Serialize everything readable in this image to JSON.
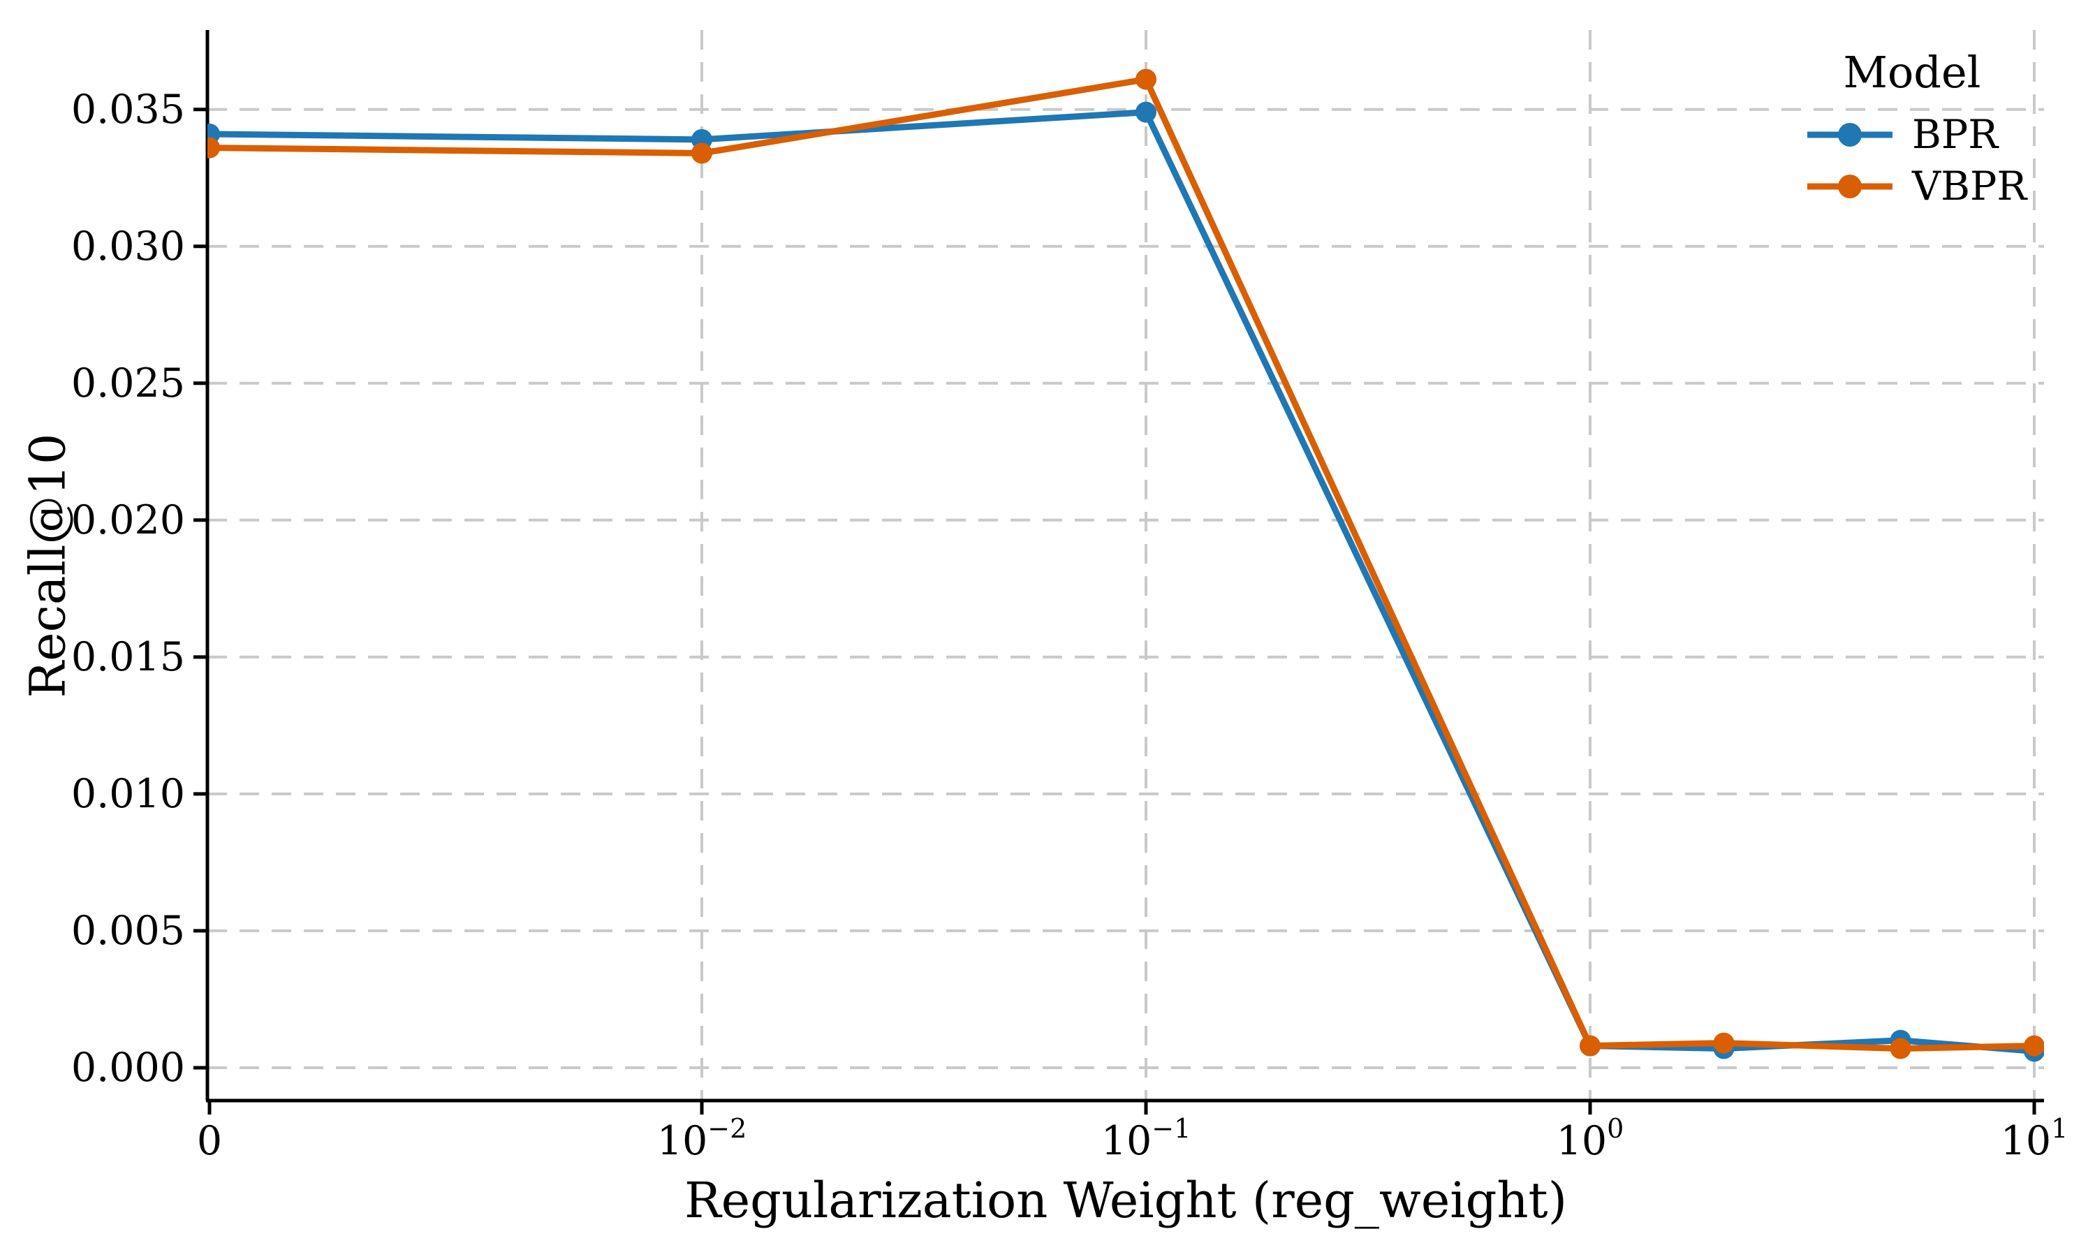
{
  "chart_data": {
    "type": "line",
    "title": "",
    "xlabel": "Regularization Weight (reg_weight)",
    "ylabel": "Recall@10",
    "x_axis": {
      "scale": "symlog",
      "ticks": [
        {
          "value": 0,
          "base": "0",
          "exp": ""
        },
        {
          "value": 0.01,
          "base": "10",
          "exp": "−2"
        },
        {
          "value": 0.1,
          "base": "10",
          "exp": "−1"
        },
        {
          "value": 1,
          "base": "10",
          "exp": "0"
        },
        {
          "value": 10,
          "base": "10",
          "exp": "1"
        }
      ]
    },
    "y_axis": {
      "tick_values": [
        0.0,
        0.005,
        0.01,
        0.015,
        0.02,
        0.025,
        0.03,
        0.035
      ],
      "tick_labels": [
        "0.000",
        "0.005",
        "0.010",
        "0.015",
        "0.020",
        "0.025",
        "0.030",
        "0.035"
      ],
      "lim": [
        -0.0012,
        0.0379
      ]
    },
    "x": [
      0,
      0.01,
      0.1,
      1,
      2,
      5,
      10
    ],
    "series": [
      {
        "name": "BPR",
        "color": "#1f77b4",
        "values": [
          0.0341,
          0.0339,
          0.0349,
          0.0008,
          0.0007,
          0.001,
          0.0006
        ]
      },
      {
        "name": "VBPR",
        "color": "#d95f02",
        "values": [
          0.0336,
          0.0334,
          0.0361,
          0.0008,
          0.0009,
          0.0007,
          0.0008
        ]
      }
    ],
    "legend": {
      "title": "Model",
      "entries": [
        "BPR",
        "VBPR"
      ],
      "position": "upper right"
    },
    "grid": {
      "style": "dashed",
      "color": "#c9c9c9"
    },
    "spine_color": "#000000",
    "background": "#ffffff"
  }
}
